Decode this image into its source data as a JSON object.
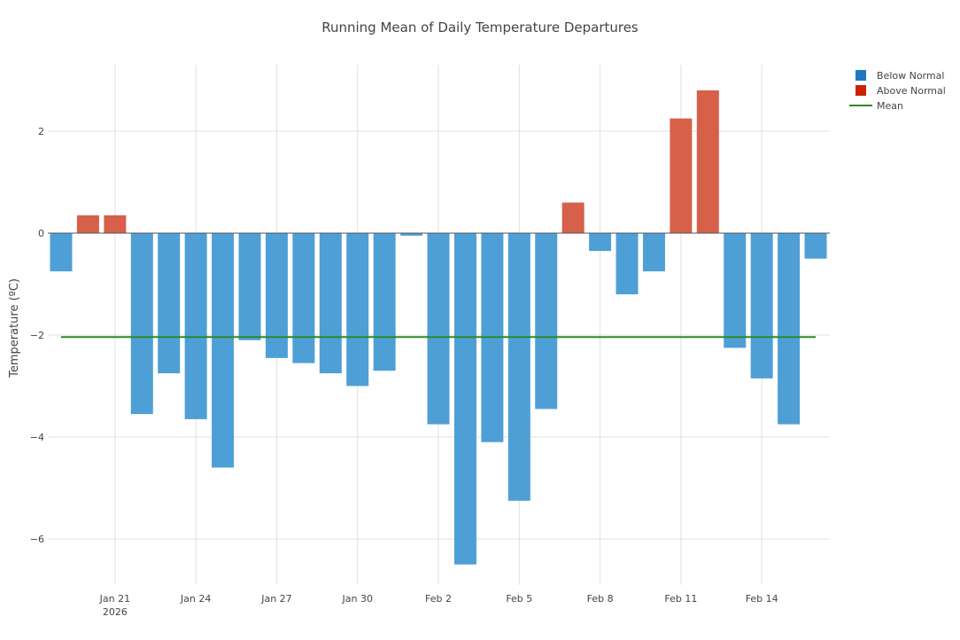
{
  "chart_data": {
    "type": "bar",
    "title": "Running Mean of Daily Temperature Departures",
    "xlabel": "",
    "ylabel": "Temperature (ºC)",
    "ylim": [
      -6.9,
      3.3
    ],
    "y_ticks": [
      {
        "value": 2,
        "label": "2"
      },
      {
        "value": 0,
        "label": "0"
      },
      {
        "value": -2,
        "label": "−2"
      },
      {
        "value": -4,
        "label": "−4"
      },
      {
        "value": -6,
        "label": "−6"
      }
    ],
    "x_ticks": [
      {
        "index": 2,
        "label": "Jan 21",
        "sublabel": "2026"
      },
      {
        "index": 5,
        "label": "Jan 24"
      },
      {
        "index": 8,
        "label": "Jan 27"
      },
      {
        "index": 11,
        "label": "Jan 30"
      },
      {
        "index": 14,
        "label": "Feb 2"
      },
      {
        "index": 17,
        "label": "Feb 5"
      },
      {
        "index": 20,
        "label": "Feb 8"
      },
      {
        "index": 23,
        "label": "Feb 11"
      },
      {
        "index": 26,
        "label": "Feb 14"
      }
    ],
    "grid": true,
    "legend_position": "top-right",
    "categories": [
      "Jan 19",
      "Jan 20",
      "Jan 21",
      "Jan 22",
      "Jan 23",
      "Jan 24",
      "Jan 25",
      "Jan 26",
      "Jan 27",
      "Jan 28",
      "Jan 29",
      "Jan 30",
      "Jan 31",
      "Feb 1",
      "Feb 2",
      "Feb 3",
      "Feb 4",
      "Feb 5",
      "Feb 6",
      "Feb 7",
      "Feb 8",
      "Feb 9",
      "Feb 10",
      "Feb 11",
      "Feb 12",
      "Feb 13",
      "Feb 14",
      "Feb 15",
      "Feb 16"
    ],
    "values": [
      -0.75,
      0.35,
      0.35,
      -3.55,
      -2.75,
      -3.65,
      -4.6,
      -2.1,
      -2.45,
      -2.55,
      -2.75,
      -3.0,
      -2.7,
      -0.05,
      -3.75,
      -6.5,
      -4.1,
      -5.25,
      -3.45,
      0.6,
      -0.35,
      -1.2,
      -0.75,
      2.25,
      2.8,
      -2.25,
      -2.85,
      -3.75,
      -0.5
    ],
    "mean": -2.04,
    "series": [
      {
        "name": "Below Normal",
        "color": "#1f77c4",
        "bar_color": "#4e9fd6",
        "kind": "bar"
      },
      {
        "name": "Above Normal",
        "color": "#cc2200",
        "bar_color": "#d6604a",
        "kind": "bar"
      },
      {
        "name": "Mean",
        "color": "#2a8a2a",
        "kind": "line"
      }
    ]
  }
}
